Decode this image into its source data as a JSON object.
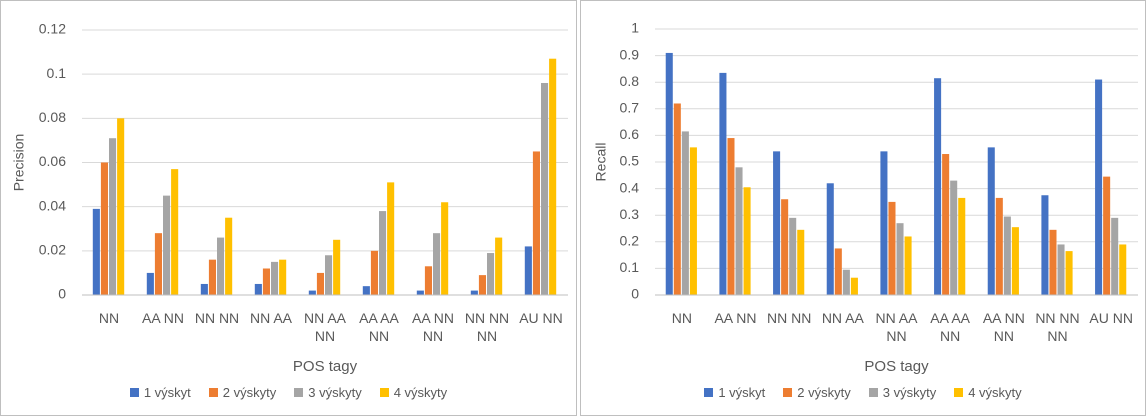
{
  "chart_data": [
    {
      "type": "bar",
      "y_label": "Precision",
      "x_label": "POS tagy",
      "categories": [
        "NN",
        "AA NN",
        "NN NN",
        "NN AA",
        "NN AA NN",
        "AA AA NN",
        "AA NN NN",
        "NN NN NN",
        "AU NN"
      ],
      "series": [
        {
          "name": "1 výskyt",
          "color": "#4472c4",
          "values": [
            0.039,
            0.01,
            0.005,
            0.005,
            0.002,
            0.004,
            0.002,
            0.002,
            0.022
          ]
        },
        {
          "name": "2 výskyty",
          "color": "#ed7d31",
          "values": [
            0.06,
            0.028,
            0.016,
            0.012,
            0.01,
            0.02,
            0.013,
            0.009,
            0.065
          ]
        },
        {
          "name": "3 výskyty",
          "color": "#a5a5a5",
          "values": [
            0.071,
            0.045,
            0.026,
            0.015,
            0.018,
            0.038,
            0.028,
            0.019,
            0.096
          ]
        },
        {
          "name": "4 výskyty",
          "color": "#ffc000",
          "values": [
            0.08,
            0.057,
            0.035,
            0.016,
            0.025,
            0.051,
            0.042,
            0.026,
            0.107
          ]
        }
      ],
      "ylim": [
        0,
        0.12
      ],
      "yticks": [
        0,
        0.02,
        0.04,
        0.06,
        0.08,
        0.1,
        0.12
      ],
      "grid": true,
      "legend": "bottom"
    },
    {
      "type": "bar",
      "y_label": "Recall",
      "x_label": "POS tagy",
      "categories": [
        "NN",
        "AA NN",
        "NN NN",
        "NN AA",
        "NN AA NN",
        "AA AA NN",
        "AA NN NN",
        "NN NN NN",
        "AU NN"
      ],
      "series": [
        {
          "name": "1 výskyt",
          "color": "#4472c4",
          "values": [
            0.91,
            0.835,
            0.54,
            0.42,
            0.54,
            0.815,
            0.555,
            0.375,
            0.81
          ]
        },
        {
          "name": "2 výskyty",
          "color": "#ed7d31",
          "values": [
            0.72,
            0.59,
            0.36,
            0.175,
            0.35,
            0.53,
            0.365,
            0.245,
            0.445
          ]
        },
        {
          "name": "3 výskyty",
          "color": "#a5a5a5",
          "values": [
            0.615,
            0.48,
            0.29,
            0.095,
            0.27,
            0.43,
            0.295,
            0.19,
            0.29
          ]
        },
        {
          "name": "4 výskyty",
          "color": "#ffc000",
          "values": [
            0.555,
            0.405,
            0.245,
            0.065,
            0.22,
            0.365,
            0.255,
            0.165,
            0.19
          ]
        }
      ],
      "ylim": [
        0,
        1
      ],
      "yticks": [
        0,
        0.1,
        0.2,
        0.3,
        0.4,
        0.5,
        0.6,
        0.7,
        0.8,
        0.9,
        1
      ],
      "grid": true,
      "legend": "bottom"
    }
  ]
}
